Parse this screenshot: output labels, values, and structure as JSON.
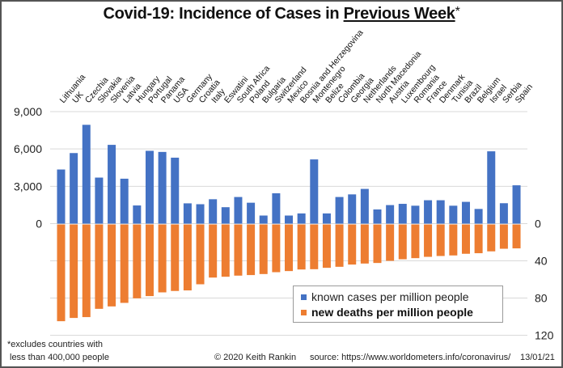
{
  "title": {
    "prefix": "Covid-19: Incidence of Cases in ",
    "underlined": "Previous Week",
    "suffix": "*"
  },
  "colors": {
    "cases": "#4472C4",
    "deaths": "#ED7D31",
    "grid": "#d9d9d9",
    "frame": "#555555"
  },
  "footer": {
    "note_line1": "*excludes  countries with",
    "note_line2": "less than 400,000 people",
    "copyright": "© 2020  Keith Rankin",
    "source": "source:  https://www.worldometers.info/coronavirus/",
    "date": "13/01/21"
  },
  "chart_data": {
    "type": "bar",
    "title": "Covid-19: Incidence of Cases in Previous Week*",
    "xlabel": "",
    "categories": [
      "Lithuania",
      "UK",
      "Czechia",
      "Slovakia",
      "Slovenia",
      "Latvia",
      "Hungary",
      "Portugal",
      "Panama",
      "USA",
      "Germany",
      "Croatia",
      "Italy",
      "Eswatini",
      "South Africa",
      "Poland",
      "Bulgaria",
      "Switzerland",
      "Mexico",
      "Bosnia and Herzegovina",
      "Montenegro",
      "Belize",
      "Colombia",
      "Georgia",
      "Netherlands",
      "North Macedonia",
      "Austria",
      "Luxembourg",
      "Romania",
      "France",
      "Denmark",
      "Tunisia",
      "Brazil",
      "Belgium",
      "Israel",
      "Serbia",
      "Spain"
    ],
    "series": [
      {
        "name": "known cases per million people",
        "axis": "left",
        "direction": "up",
        "values": [
          4350,
          5670,
          7940,
          3700,
          6330,
          3610,
          1460,
          5850,
          5760,
          5300,
          1630,
          1560,
          1960,
          1320,
          2140,
          1680,
          650,
          2440,
          650,
          820,
          5160,
          820,
          2140,
          2350,
          2790,
          1140,
          1490,
          1590,
          1440,
          1880,
          1880,
          1440,
          1750,
          1180,
          5810,
          1640,
          3080
        ]
      },
      {
        "name": "new deaths per million people",
        "axis": "right",
        "direction": "down",
        "values": [
          104.9,
          101.4,
          100.5,
          91.6,
          89.0,
          85.2,
          80.3,
          77.9,
          73.9,
          72.4,
          71.8,
          65.2,
          58.0,
          57.1,
          55.9,
          55.3,
          54.2,
          52.2,
          51.0,
          49.3,
          49.0,
          47.5,
          46.4,
          44.0,
          42.9,
          42.3,
          40.0,
          38.3,
          37.1,
          35.7,
          34.8,
          34.2,
          32.4,
          31.8,
          29.8,
          27.0,
          26.6
        ]
      }
    ],
    "left_axis": {
      "ticks": [
        0,
        3000,
        6000,
        9000
      ],
      "tick_labels": [
        "0",
        "3,000",
        "6,000",
        "9,000"
      ],
      "range": [
        0,
        9000
      ]
    },
    "right_axis": {
      "ticks": [
        0,
        40,
        80,
        120
      ],
      "tick_labels": [
        "0",
        "40",
        "80",
        "120"
      ],
      "range": [
        0,
        120
      ],
      "inverted": true
    },
    "grid": true,
    "legend": {
      "position": "bottom-right",
      "entries": [
        "known cases per million people",
        "new deaths per million people"
      ]
    }
  }
}
